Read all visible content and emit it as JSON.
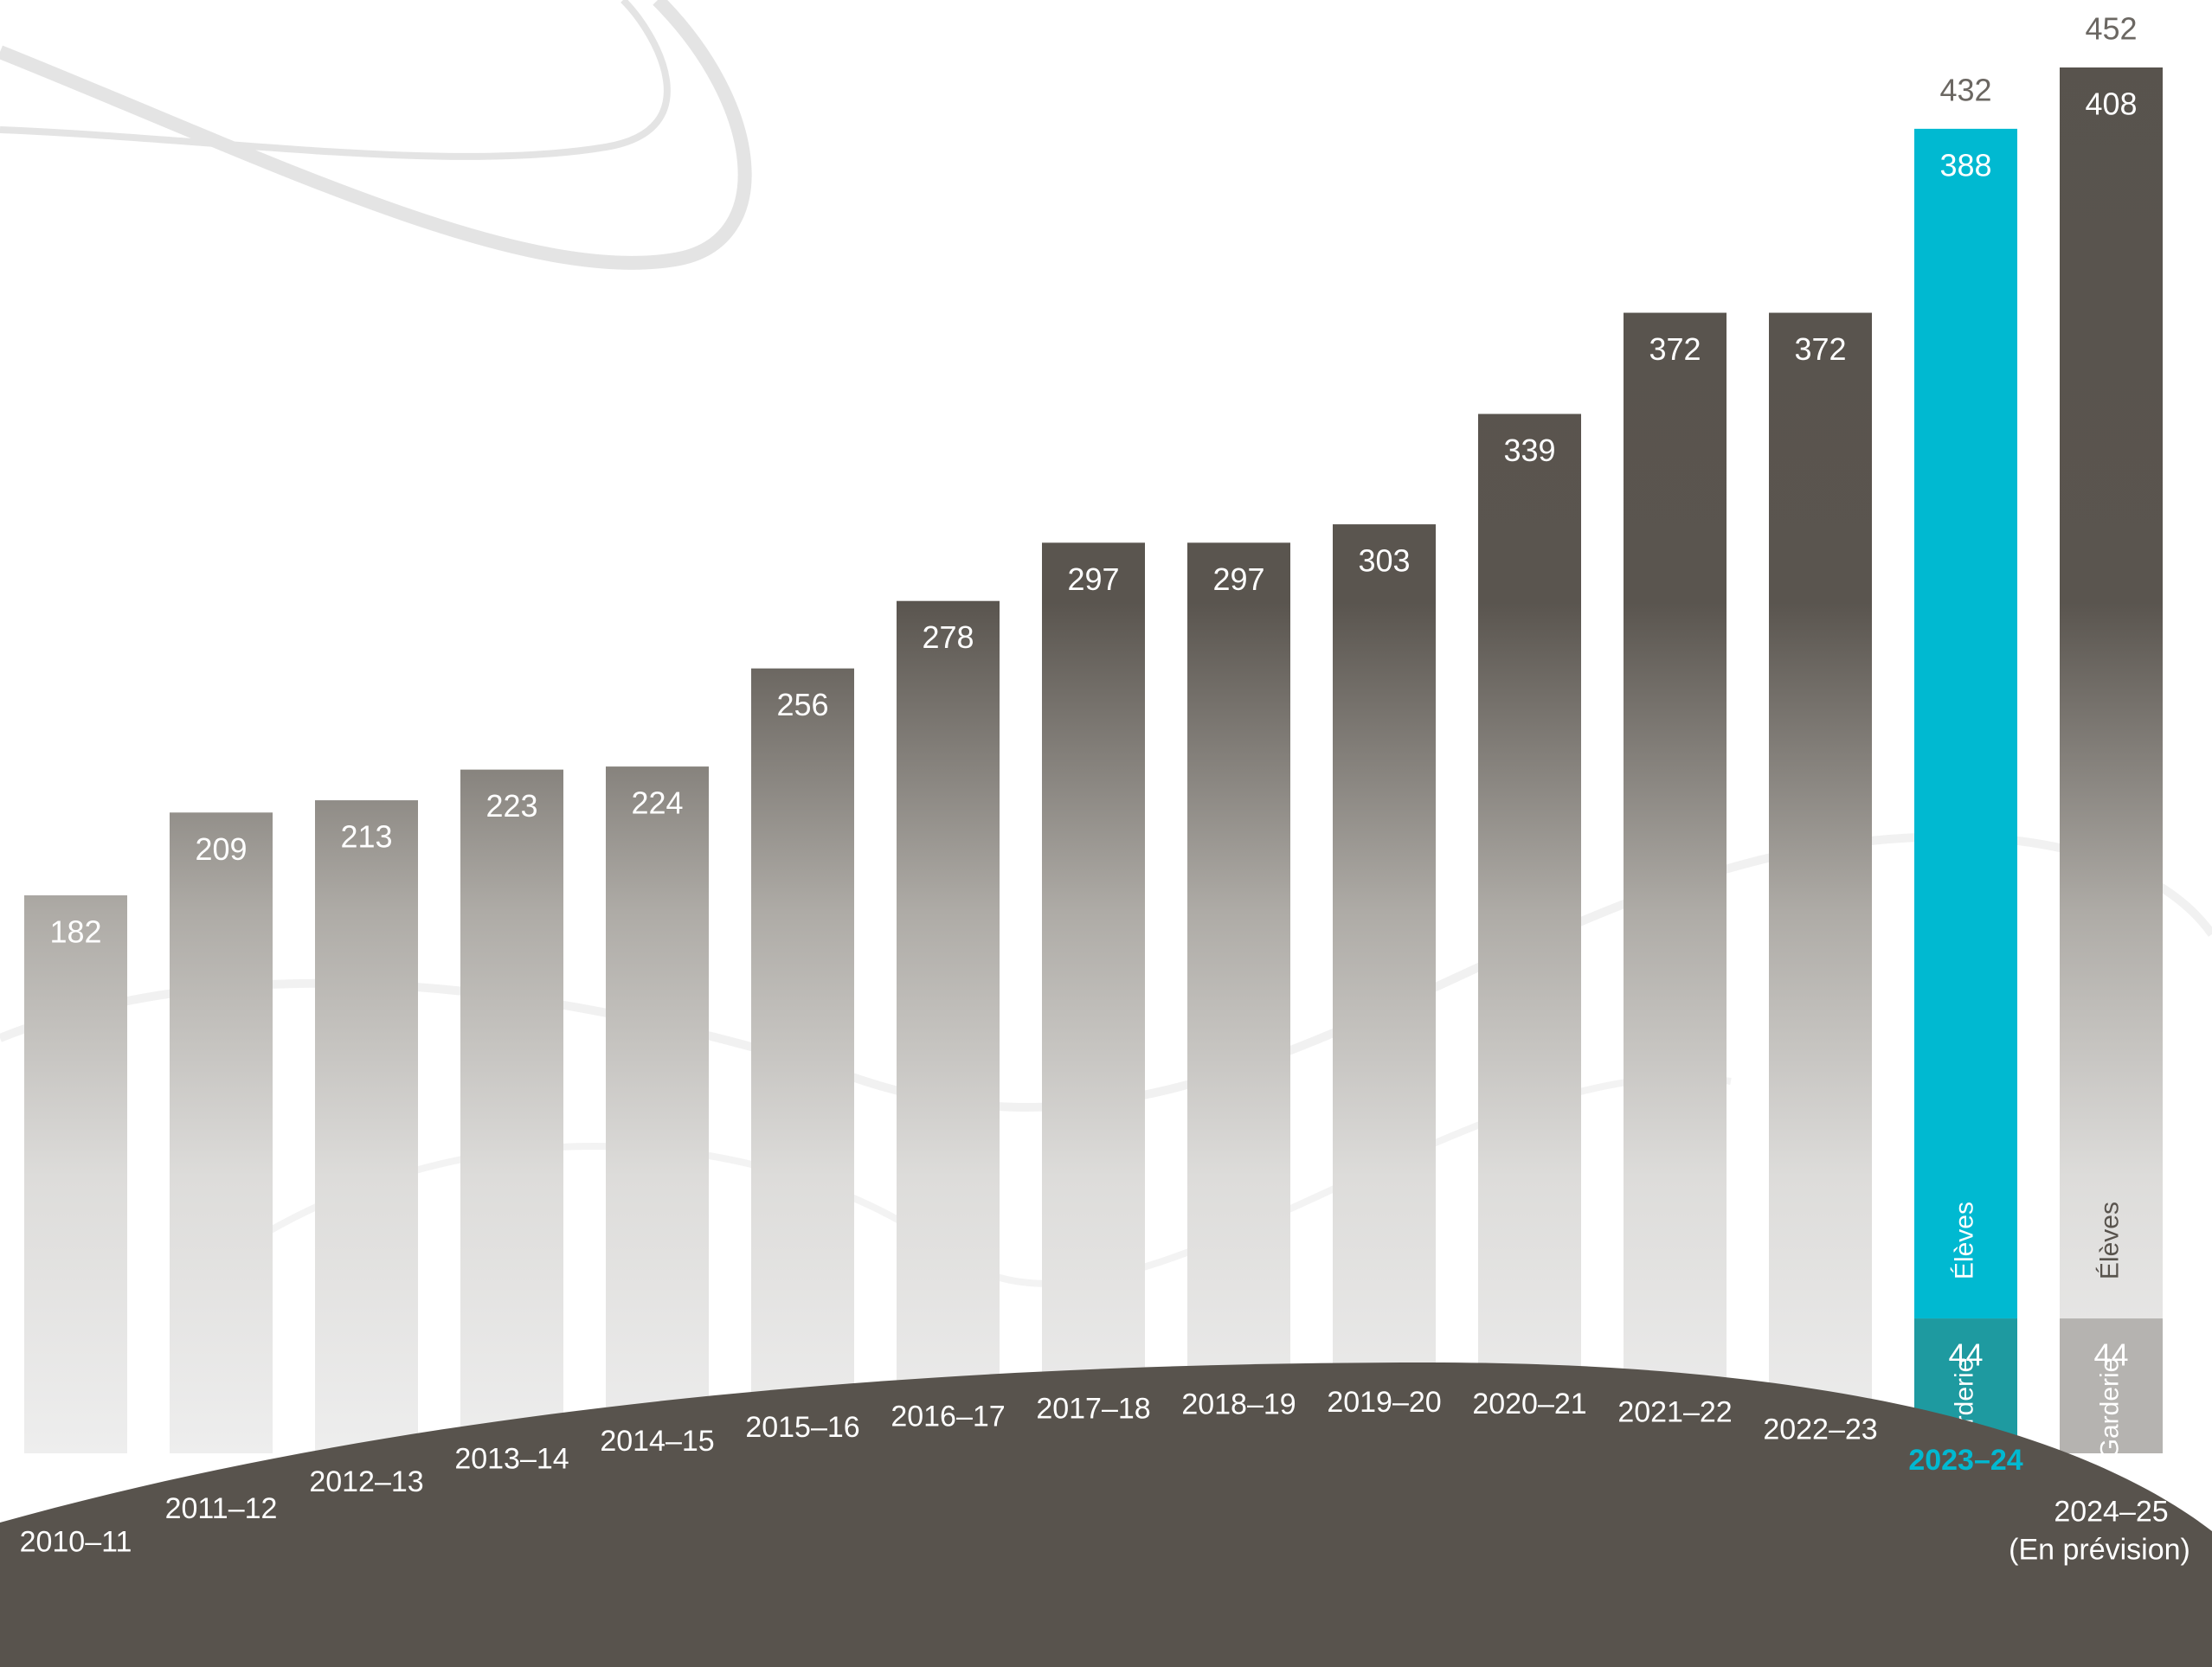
{
  "chart_data": {
    "type": "bar",
    "categories": [
      "2010–11",
      "2011–12",
      "2012–13",
      "2013–14",
      "2014–15",
      "2015–16",
      "2016–17",
      "2017–18",
      "2018–19",
      "2019–20",
      "2020–21",
      "2021–22",
      "2022–23",
      "2023–24",
      "2024–25"
    ],
    "forecast_note": "(En prévision)",
    "series": [
      {
        "name": "Garderie",
        "color": "#b5b3b0",
        "values": [
          null,
          null,
          null,
          null,
          null,
          null,
          null,
          null,
          null,
          null,
          null,
          null,
          null,
          44,
          44
        ]
      },
      {
        "name": "Élèves",
        "color": "#58534d",
        "values": [
          182,
          209,
          213,
          223,
          224,
          256,
          278,
          297,
          297,
          303,
          339,
          372,
          372,
          388,
          408
        ]
      }
    ],
    "totals": [
      null,
      null,
      null,
      null,
      null,
      null,
      null,
      null,
      null,
      null,
      null,
      null,
      null,
      432,
      452
    ],
    "stacked": true,
    "highlight_category": "2023–24",
    "highlight_colors": [
      "#1e9aa0",
      "#00b9d1"
    ]
  }
}
